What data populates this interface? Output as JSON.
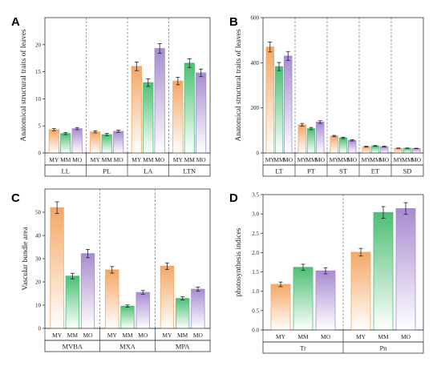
{
  "colors": {
    "MY": "#f4a765",
    "MM": "#4cbf73",
    "MO": "#a88bd0",
    "frame": "#333333"
  },
  "chart_data": [
    {
      "panel": "A",
      "type": "bar",
      "ylabel": "Anatomical structural traits of leaves",
      "ylim": [
        0,
        25
      ],
      "yticks": [
        0,
        5,
        10,
        15,
        20
      ],
      "series_names": [
        "MY",
        "MM",
        "MO"
      ],
      "groups": [
        {
          "label": "LL",
          "values": [
            4.3,
            3.6,
            4.5
          ],
          "errors": [
            0.2,
            0.2,
            0.2
          ]
        },
        {
          "label": "PL",
          "values": [
            3.9,
            3.4,
            4.0
          ],
          "errors": [
            0.2,
            0.2,
            0.2
          ]
        },
        {
          "label": "LA",
          "values": [
            16.0,
            13.0,
            19.3
          ],
          "errors": [
            0.8,
            0.7,
            0.9
          ]
        },
        {
          "label": "LTN",
          "values": [
            13.3,
            16.6,
            14.8
          ],
          "errors": [
            0.7,
            0.8,
            0.7
          ]
        }
      ]
    },
    {
      "panel": "B",
      "type": "bar",
      "ylabel": "Anatomical structural traits of leaves",
      "ylim": [
        0,
        600
      ],
      "yticks": [
        0,
        200,
        400,
        600
      ],
      "series_names": [
        "MY",
        "MM",
        "MO"
      ],
      "groups": [
        {
          "label": "LT",
          "values": [
            470,
            383,
            430
          ],
          "errors": [
            22,
            18,
            20
          ]
        },
        {
          "label": "PT",
          "values": [
            125,
            108,
            137
          ],
          "errors": [
            6,
            5,
            6
          ]
        },
        {
          "label": "ST",
          "values": [
            75,
            67,
            56
          ],
          "errors": [
            3,
            3,
            3
          ]
        },
        {
          "label": "ET",
          "values": [
            28,
            31,
            28
          ],
          "errors": [
            2,
            2,
            2
          ]
        },
        {
          "label": "SD",
          "values": [
            21,
            21,
            20
          ],
          "errors": [
            1,
            1,
            1
          ]
        }
      ]
    },
    {
      "panel": "C",
      "type": "bar",
      "ylabel": "Vascular bundle area",
      "ylim": [
        0,
        60
      ],
      "yticks": [
        0,
        10,
        20,
        30,
        40,
        50
      ],
      "series_names": [
        "MY",
        "MM",
        "MO"
      ],
      "groups": [
        {
          "label": "MVBA",
          "values": [
            52.0,
            22.5,
            32.2
          ],
          "errors": [
            2.5,
            1.2,
            1.8
          ]
        },
        {
          "label": "MXA",
          "values": [
            25.2,
            9.6,
            15.5
          ],
          "errors": [
            1.4,
            0.5,
            0.8
          ]
        },
        {
          "label": "MPA",
          "values": [
            26.8,
            12.9,
            16.9
          ],
          "errors": [
            1.4,
            0.7,
            0.9
          ]
        }
      ]
    },
    {
      "panel": "D",
      "type": "bar",
      "ylabel": "photosynthesis indices",
      "ylim": [
        0,
        3.5
      ],
      "yticks": [
        "0.0",
        "0.5",
        "1.0",
        "1.5",
        "2.0",
        "2.5",
        "3.0",
        "3.5"
      ],
      "series_names": [
        "MY",
        "MM",
        "MO"
      ],
      "groups": [
        {
          "label": "Tr",
          "values": [
            1.18,
            1.62,
            1.53
          ],
          "errors": [
            0.06,
            0.08,
            0.08
          ]
        },
        {
          "label": "Pn",
          "values": [
            2.01,
            3.04,
            3.14
          ],
          "errors": [
            0.1,
            0.15,
            0.15
          ]
        }
      ]
    }
  ]
}
